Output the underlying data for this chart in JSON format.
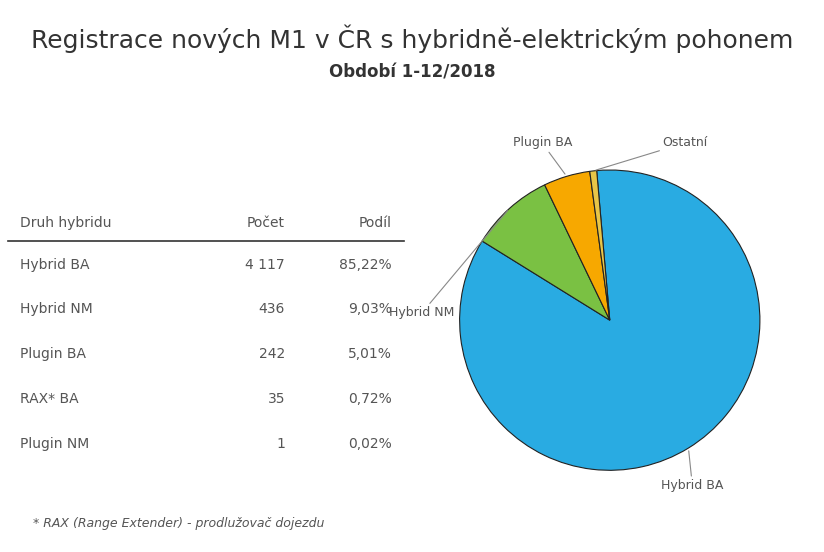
{
  "title": "Registrace nových M1 v ČR s hybridně-elektrickým pohonem",
  "subtitle": "Období 1-12/2018",
  "table_header": [
    "Druh hybridu",
    "Počet",
    "Podíl"
  ],
  "table_rows": [
    [
      "Hybrid BA",
      "4 117",
      "85,22%"
    ],
    [
      "Hybrid NM",
      "436",
      "9,03%"
    ],
    [
      "Plugin BA",
      "242",
      "5,01%"
    ],
    [
      "RAX* BA",
      "35",
      "0,72%"
    ],
    [
      "Plugin NM",
      "1",
      "0,02%"
    ]
  ],
  "footnote": "* RAX (Range Extender) - prodlužovač dojezdu",
  "pie_values": [
    85.22,
    9.03,
    5.01,
    0.74
  ],
  "pie_labels": [
    "Hybrid BA",
    "Hybrid NM",
    "Plugin BA",
    "Ostatní"
  ],
  "pie_colors": [
    "#29ABE2",
    "#7AC143",
    "#F7A800",
    "#E8C547"
  ],
  "bg_color": "#FFFFFF",
  "title_fontsize": 18,
  "subtitle_fontsize": 12,
  "text_color": "#333333",
  "table_text_color": "#555555"
}
